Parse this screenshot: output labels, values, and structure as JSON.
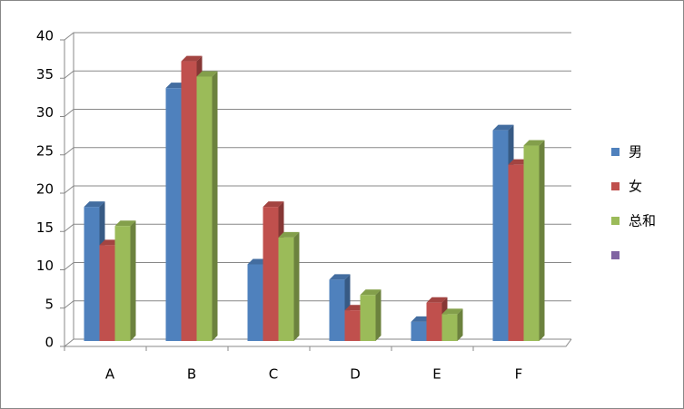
{
  "chart_data": {
    "type": "bar3d",
    "categories": [
      "A",
      "B",
      "C",
      "D",
      "E",
      "F"
    ],
    "series": [
      {
        "name": "男",
        "color": "#4f81bd",
        "values": [
          17.5,
          33,
          10,
          8,
          2.5,
          27.5
        ]
      },
      {
        "name": "女",
        "color": "#c0504d",
        "values": [
          12.5,
          36.5,
          17.5,
          4,
          5,
          23
        ]
      },
      {
        "name": "总和",
        "color": "#9bbb59",
        "values": [
          15,
          34.5,
          13.5,
          6,
          3.5,
          25.5
        ]
      },
      {
        "color": "#8064a2",
        "values": [
          null,
          null,
          null,
          null,
          null,
          null
        ]
      }
    ],
    "ylim": [
      0,
      40
    ],
    "yticks": [
      0,
      5,
      10,
      15,
      20,
      25,
      30,
      35,
      40
    ],
    "grid": true,
    "legend": "right"
  }
}
